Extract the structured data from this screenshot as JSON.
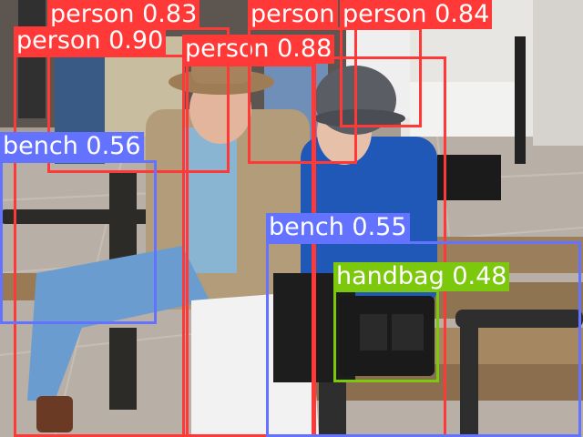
{
  "colors": {
    "person": "#ff3838",
    "bench": "#6473ff",
    "handbag": "#7cc80c"
  },
  "detections": [
    {
      "label": "person 0.83",
      "cls": "person"
    },
    {
      "label": "person 0.84",
      "cls": "person"
    },
    {
      "label": "person 0.90",
      "cls": "person"
    },
    {
      "label": "person 0.88",
      "cls": "person"
    },
    {
      "label": "bench 0.56",
      "cls": "bench"
    },
    {
      "label": "bench 0.55",
      "cls": "bench"
    },
    {
      "label": "handbag 0.48",
      "cls": "handbag"
    },
    {
      "label": "person",
      "cls": "person"
    }
  ]
}
